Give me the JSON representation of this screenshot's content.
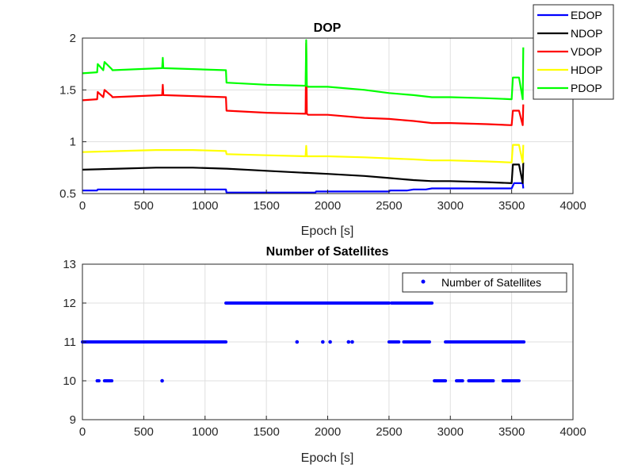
{
  "chart_data": [
    {
      "type": "line",
      "title": "DOP",
      "xlabel": "Epoch [s]",
      "ylabel": "",
      "xlim": [
        0,
        4000
      ],
      "ylim": [
        0.5,
        2
      ],
      "xticks": [
        "0",
        "500",
        "1000",
        "1500",
        "2000",
        "2500",
        "3000",
        "3500",
        "4000"
      ],
      "yticks": [
        "0.5",
        "1",
        "1.5",
        "2"
      ],
      "grid": true,
      "legend_position": "top-right-outside",
      "series": [
        {
          "name": "EDOP",
          "color": "#0000ff",
          "x": [
            0,
            120,
            125,
            240,
            245,
            650,
            655,
            1170,
            1175,
            1900,
            1905,
            2500,
            2510,
            2650,
            2700,
            2800,
            2850,
            3500,
            3520,
            3590,
            3595
          ],
          "y": [
            0.53,
            0.53,
            0.54,
            0.54,
            0.54,
            0.54,
            0.54,
            0.54,
            0.51,
            0.51,
            0.52,
            0.52,
            0.53,
            0.53,
            0.54,
            0.54,
            0.55,
            0.55,
            0.6,
            0.6,
            0.55
          ]
        },
        {
          "name": "NDOP",
          "color": "#000000",
          "x": [
            0,
            300,
            600,
            900,
            1170,
            1175,
            1500,
            1820,
            1830,
            2000,
            2300,
            2500,
            2700,
            2850,
            3000,
            3300,
            3500,
            3510,
            3560,
            3590,
            3595
          ],
          "y": [
            0.73,
            0.74,
            0.75,
            0.75,
            0.74,
            0.74,
            0.72,
            0.7,
            0.7,
            0.69,
            0.67,
            0.65,
            0.63,
            0.62,
            0.62,
            0.61,
            0.6,
            0.78,
            0.78,
            0.6,
            0.8
          ]
        },
        {
          "name": "VDOP",
          "color": "#ff0000",
          "x": [
            0,
            120,
            125,
            170,
            180,
            240,
            245,
            650,
            655,
            660,
            1170,
            1175,
            1500,
            1820,
            1825,
            1830,
            1840,
            2000,
            2300,
            2500,
            2700,
            2850,
            3000,
            3300,
            3500,
            3510,
            3560,
            3590,
            3595
          ],
          "y": [
            1.4,
            1.41,
            1.48,
            1.43,
            1.5,
            1.44,
            1.43,
            1.45,
            1.55,
            1.45,
            1.43,
            1.3,
            1.28,
            1.27,
            1.95,
            1.27,
            1.26,
            1.26,
            1.23,
            1.22,
            1.2,
            1.18,
            1.18,
            1.17,
            1.16,
            1.3,
            1.3,
            1.16,
            1.36
          ]
        },
        {
          "name": "HDOP",
          "color": "#ffff00",
          "x": [
            0,
            300,
            600,
            900,
            1170,
            1175,
            1500,
            1820,
            1825,
            1830,
            2000,
            2300,
            2500,
            2700,
            2850,
            3000,
            3300,
            3500,
            3510,
            3560,
            3590,
            3595
          ],
          "y": [
            0.9,
            0.91,
            0.92,
            0.92,
            0.91,
            0.88,
            0.87,
            0.86,
            0.96,
            0.86,
            0.86,
            0.85,
            0.84,
            0.83,
            0.82,
            0.82,
            0.81,
            0.8,
            0.97,
            0.97,
            0.8,
            0.97
          ]
        },
        {
          "name": "PDOP",
          "color": "#00ff00",
          "x": [
            0,
            120,
            125,
            170,
            180,
            240,
            245,
            650,
            655,
            660,
            1170,
            1175,
            1500,
            1820,
            1825,
            1830,
            1840,
            2000,
            2300,
            2500,
            2700,
            2850,
            3000,
            3300,
            3500,
            3510,
            3560,
            3590,
            3595
          ],
          "y": [
            1.66,
            1.67,
            1.75,
            1.69,
            1.77,
            1.7,
            1.69,
            1.71,
            1.81,
            1.71,
            1.69,
            1.57,
            1.55,
            1.54,
            1.98,
            1.54,
            1.53,
            1.53,
            1.5,
            1.47,
            1.45,
            1.43,
            1.43,
            1.42,
            1.41,
            1.62,
            1.62,
            1.41,
            1.91
          ]
        }
      ]
    },
    {
      "type": "scatter",
      "title": "Number of Satellites",
      "xlabel": "Epoch [s]",
      "ylabel": "",
      "xlim": [
        0,
        4000
      ],
      "ylim": [
        9,
        13
      ],
      "xticks": [
        "0",
        "500",
        "1000",
        "1500",
        "2000",
        "2500",
        "3000",
        "3500",
        "4000"
      ],
      "yticks": [
        "9",
        "10",
        "11",
        "12",
        "13"
      ],
      "grid": true,
      "legend_position": "top-right",
      "series": [
        {
          "name": "Number of Satellites",
          "color": "#0000ff",
          "segments": [
            {
              "value": 11,
              "from": 0,
              "to": 1170
            },
            {
              "value": 12,
              "from": 1170,
              "to": 2500
            },
            {
              "value": 12,
              "from": 2520,
              "to": 2850
            },
            {
              "value": 11,
              "from": 2500,
              "to": 2580
            },
            {
              "value": 11,
              "from": 2620,
              "to": 2830
            },
            {
              "value": 11,
              "from": 2960,
              "to": 3600
            },
            {
              "value": 10,
              "from": 120,
              "to": 135
            },
            {
              "value": 10,
              "from": 180,
              "to": 240
            },
            {
              "value": 10,
              "from": 2870,
              "to": 2960
            },
            {
              "value": 10,
              "from": 3050,
              "to": 3100
            },
            {
              "value": 10,
              "from": 3150,
              "to": 3350
            },
            {
              "value": 10,
              "from": 3430,
              "to": 3560
            }
          ],
          "points": [
            {
              "x": 650,
              "y": 10
            },
            {
              "x": 1750,
              "y": 11
            },
            {
              "x": 1960,
              "y": 11
            },
            {
              "x": 2020,
              "y": 11
            },
            {
              "x": 2170,
              "y": 11
            },
            {
              "x": 2200,
              "y": 11
            }
          ]
        }
      ]
    }
  ]
}
